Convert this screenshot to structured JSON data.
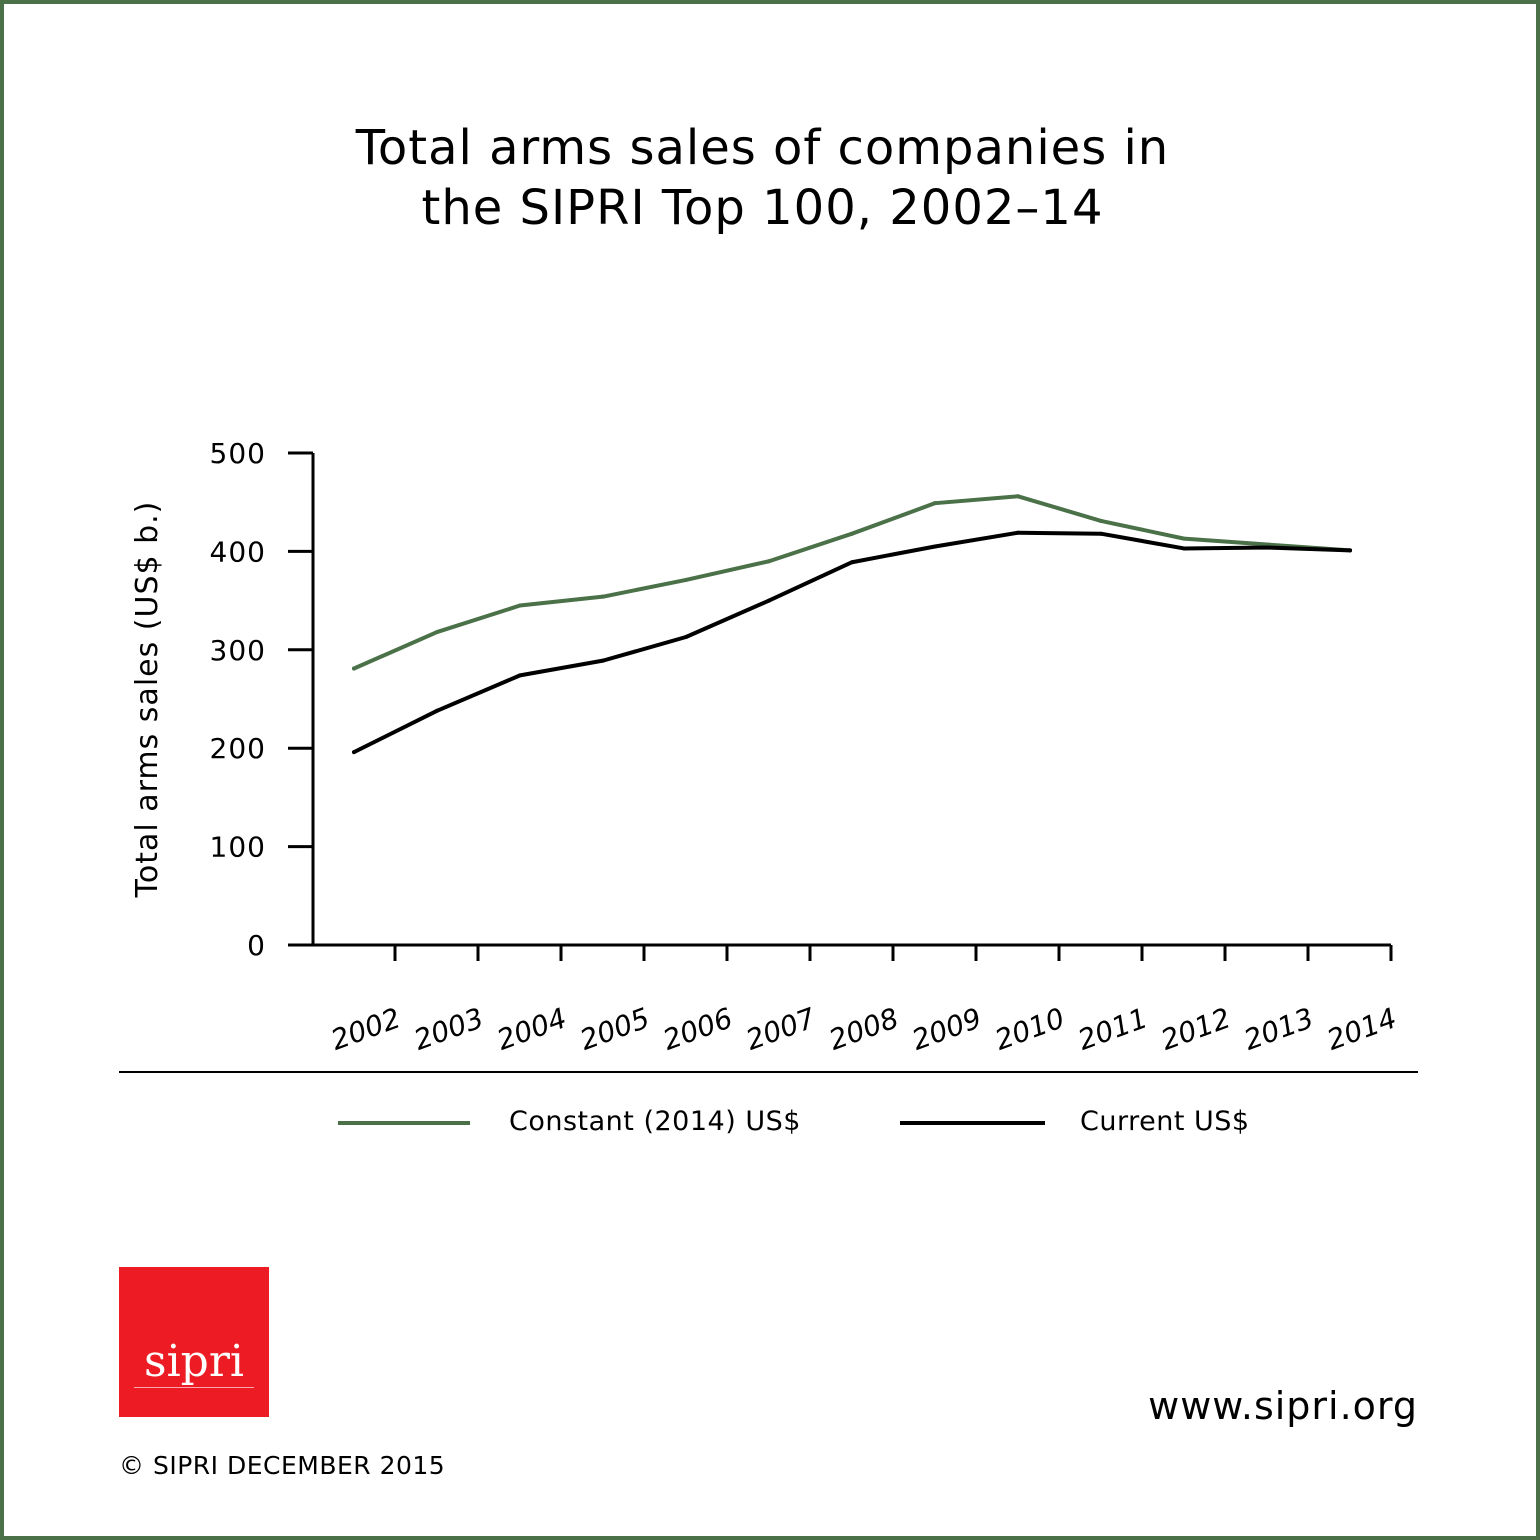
{
  "title": {
    "line1": "Total arms sales of companies in",
    "line2": "the SIPRI Top 100, 2002–14"
  },
  "colors": {
    "frame": "#4a7148",
    "constant_series": "#4a7148",
    "current_series": "#000000",
    "logo_bg": "#ed1c24"
  },
  "chart_data": {
    "type": "line",
    "title": "Total arms sales of companies in the SIPRI Top 100, 2002–14",
    "xlabel": "",
    "ylabel": "Total arms sales (US$ b.)",
    "categories": [
      "2002",
      "2003",
      "2004",
      "2005",
      "2006",
      "2007",
      "2008",
      "2009",
      "2010",
      "2011",
      "2012",
      "2013",
      "2014"
    ],
    "yticks": [
      0,
      100,
      200,
      300,
      400,
      500
    ],
    "ylim": [
      0,
      500
    ],
    "grid": false,
    "legend_position": "bottom",
    "series": [
      {
        "name": "Constant (2014) US$",
        "color": "#4a7148",
        "values": [
          281,
          318,
          345,
          354,
          371,
          390,
          418,
          449,
          456,
          431,
          413,
          407,
          401
        ]
      },
      {
        "name": "Current US$",
        "color": "#000000",
        "values": [
          196,
          238,
          274,
          289,
          313,
          350,
          389,
          405,
          419,
          418,
          403,
          404,
          401
        ]
      }
    ]
  },
  "legend": {
    "constant_label": "Constant (2014) US$",
    "current_label": "Current US$"
  },
  "logo": {
    "text": "sipri"
  },
  "footer": {
    "website": "www.sipri.org",
    "copyright": "© SIPRI DECEMBER 2015"
  }
}
